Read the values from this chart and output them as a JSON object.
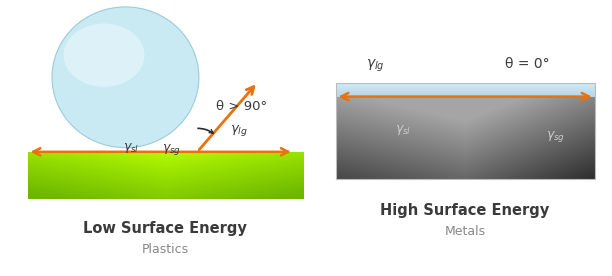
{
  "bg_color": "#ffffff",
  "orange_color": "#E8720C",
  "dark_text": "#3a3a3a",
  "gray_text": "#888888",
  "left_title": "Low Surface Energy",
  "left_subtitle": "Plastics",
  "right_title": "High Surface Energy",
  "right_subtitle": "Metals",
  "theta_label_left": "θ > 90°",
  "theta_label_right": "θ = 0°",
  "droplet_outer": "#c5e8f2",
  "droplet_inner": "#e8f6fb",
  "droplet_edge": "#90c8d8"
}
